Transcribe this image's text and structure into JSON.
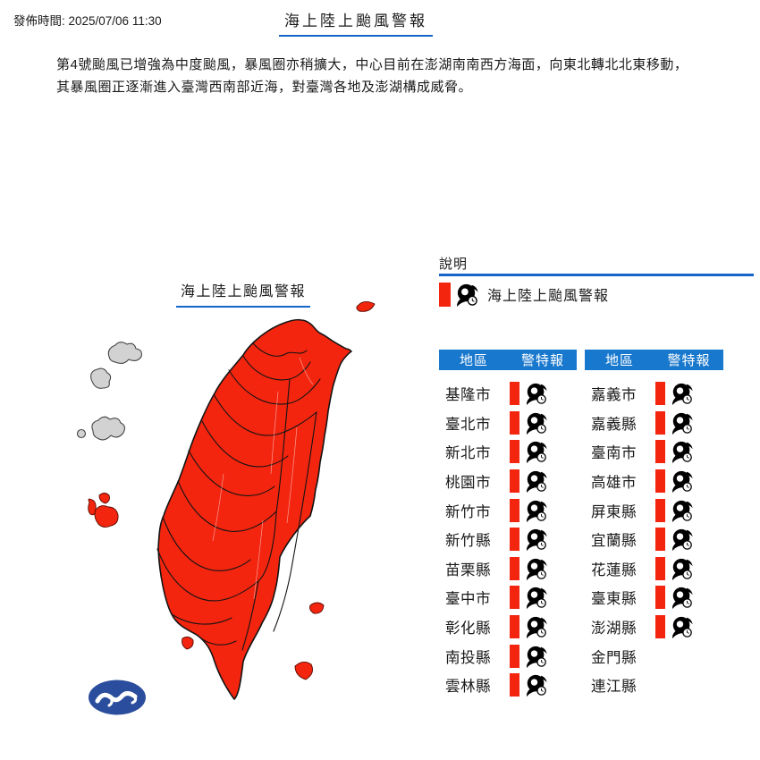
{
  "header": {
    "issue_time_label": "發佈時間: 2025/07/06 11:30",
    "title": "海上陸上颱風警報"
  },
  "bulletin": {
    "line1": "第4號颱風已增強為中度颱風，暴風圈亦稍擴大，中心目前在澎湖南南西方海面，向東北轉北北東移動，",
    "line2": "其暴風圈正逐漸進入臺灣西南部近海，對臺灣各地及澎湖構成威脅。"
  },
  "map": {
    "title": "海上陸上颱風警報",
    "warning_area_color": "#f3250f",
    "no_warning_island_color": "#cfcfcf"
  },
  "legend": {
    "heading": "說明",
    "item_label": "海上陸上颱風警報",
    "item_icon": "typhoon-icon",
    "item_swatch_color": "#f3250f"
  },
  "tables": {
    "headers": {
      "region": "地區",
      "warning": "警特報"
    },
    "warning_type": "海上陸上颱風警報",
    "left_rows": [
      {
        "region": "基隆市",
        "warning": true
      },
      {
        "region": "臺北市",
        "warning": true
      },
      {
        "region": "新北市",
        "warning": true
      },
      {
        "region": "桃園市",
        "warning": true
      },
      {
        "region": "新竹市",
        "warning": true
      },
      {
        "region": "新竹縣",
        "warning": true
      },
      {
        "region": "苗栗縣",
        "warning": true
      },
      {
        "region": "臺中市",
        "warning": true
      },
      {
        "region": "彰化縣",
        "warning": true
      },
      {
        "region": "南投縣",
        "warning": true
      },
      {
        "region": "雲林縣",
        "warning": true
      }
    ],
    "right_rows": [
      {
        "region": "嘉義市",
        "warning": true
      },
      {
        "region": "嘉義縣",
        "warning": true
      },
      {
        "region": "臺南市",
        "warning": true
      },
      {
        "region": "高雄市",
        "warning": true
      },
      {
        "region": "屏東縣",
        "warning": true
      },
      {
        "region": "宜蘭縣",
        "warning": true
      },
      {
        "region": "花蓮縣",
        "warning": true
      },
      {
        "region": "臺東縣",
        "warning": true
      },
      {
        "region": "澎湖縣",
        "warning": true
      },
      {
        "region": "金門縣",
        "warning": false
      },
      {
        "region": "連江縣",
        "warning": false
      }
    ]
  },
  "colors": {
    "warning_red": "#f3250f",
    "table_header_blue": "#1878cd",
    "rule_blue": "#1565c8",
    "logo_navy": "#2b4d9d"
  }
}
